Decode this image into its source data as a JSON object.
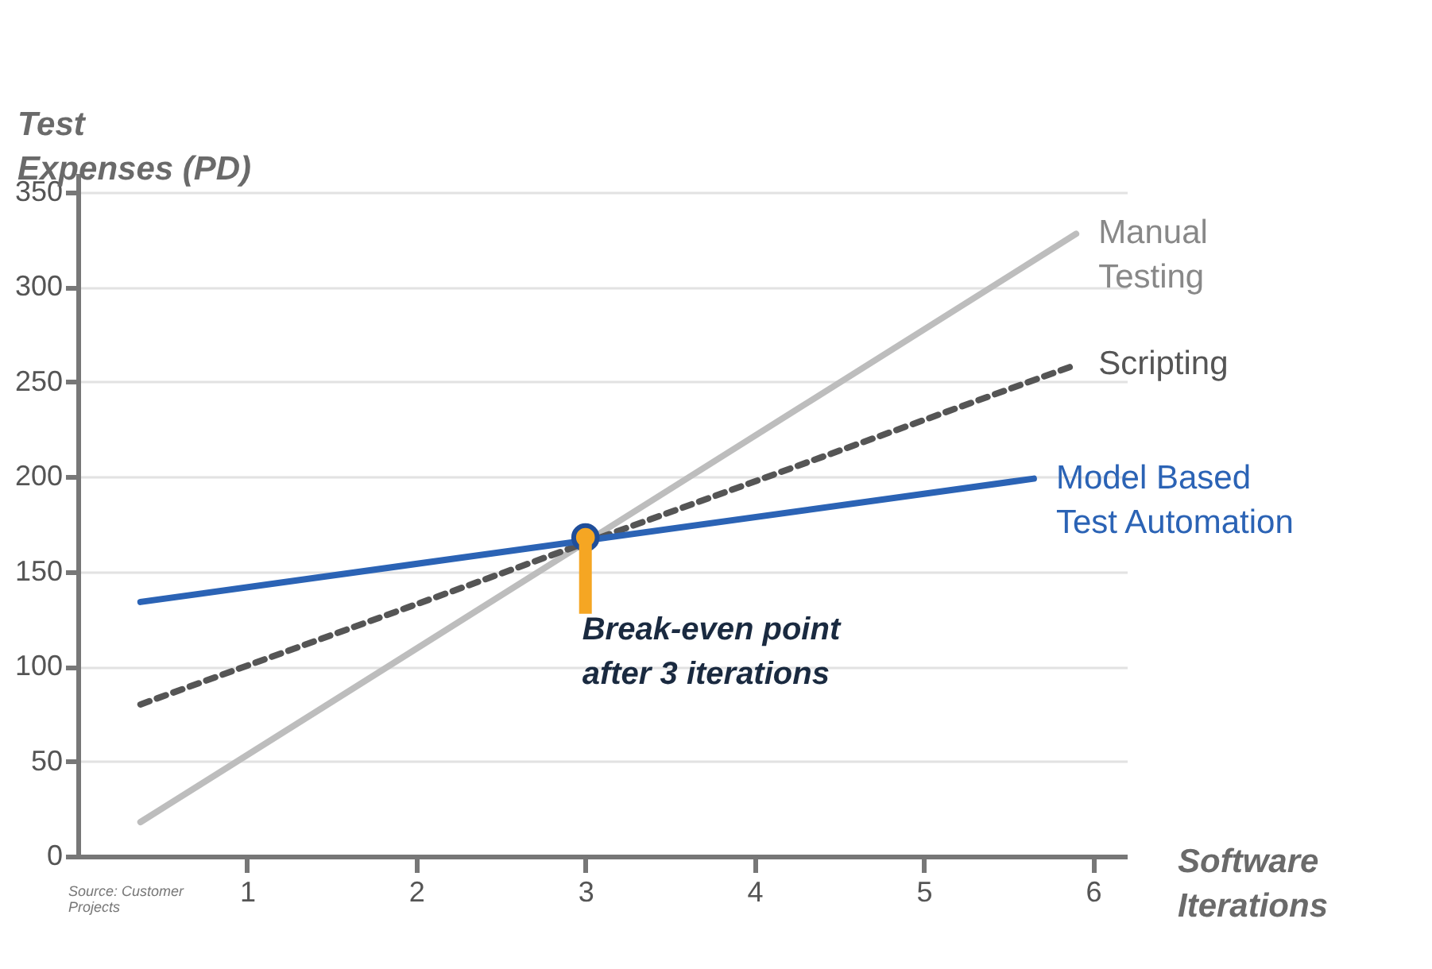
{
  "chart_data": {
    "type": "line",
    "xlabel": "Software Iterations",
    "ylabel": "Test Expenses (PD)",
    "xlim": [
      0,
      6.2
    ],
    "xticks": [
      1,
      2,
      3,
      4,
      5,
      6
    ],
    "ylim": [
      0,
      360
    ],
    "yticks": [
      0,
      50,
      100,
      150,
      200,
      250,
      300,
      350
    ],
    "grid": "y",
    "legend": false,
    "series": [
      {
        "name": "Manual Testing",
        "color": "#bdbdbd",
        "line_style": "solid",
        "x": [
          0.37,
          5.9
        ],
        "values": [
          18,
          328
        ]
      },
      {
        "name": "Scripting",
        "color": "#555555",
        "line_style": "dashed",
        "x": [
          0.37,
          5.9
        ],
        "values": [
          80,
          259
        ]
      },
      {
        "name": "Model Based Test Automation",
        "color": "#2b63b5",
        "line_style": "solid",
        "x": [
          0.37,
          5.65
        ],
        "values": [
          134,
          199
        ]
      }
    ],
    "annotations": [
      {
        "text": "Break-even point after 3 iterations",
        "x": 3,
        "y": 168
      },
      "Source: Customer Projects"
    ]
  }
}
